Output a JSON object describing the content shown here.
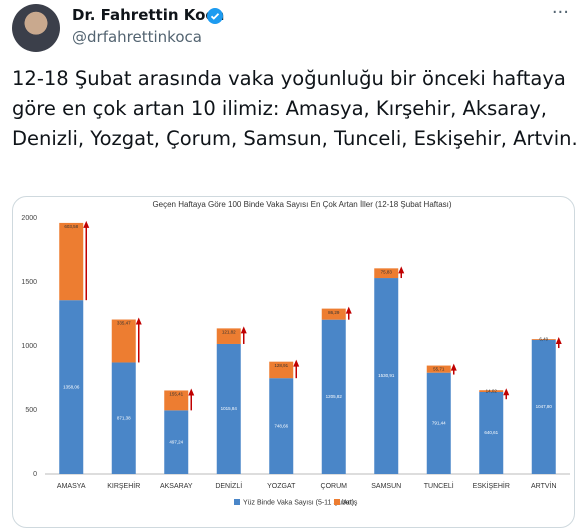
{
  "tweet": {
    "author": "Dr. Fahrettin Koca",
    "handle": "@drfahrettinkoca",
    "text": "12-18 Şubat arasında vaka yoğunluğu bir önceki haftaya göre en çok artan 10 ilimiz: Amasya, Kırşehir, Aksaray, Denizli, Yozgat, Çorum, Samsun, Tunceli, Eskişehir, Artvin."
  },
  "chart_data": {
    "type": "stacked-bar",
    "title": "Geçen Haftaya Göre 100 Binde Vaka Sayısı En Çok Artan İller (12-18 Şubat Haftası)",
    "categories": [
      "AMASYA",
      "KIRŞEHİR",
      "AKSARAY",
      "DENİZLİ",
      "YOZGAT",
      "ÇORUM",
      "SAMSUN",
      "TUNCELİ",
      "ESKİŞEHİR",
      "ARTVİN"
    ],
    "series": [
      {
        "name": "Yüz Binde Vaka Sayısı (5-11 Şubat)",
        "color": "#4a86c8",
        "values": [
          1358.06,
          871.38,
          497.24,
          1015.84,
          748.66,
          1205.82,
          1530.91,
          791.44,
          640.61,
          1047.8
        ],
        "value_labels": [
          "1358,06",
          "871,38",
          "497,24",
          "1015,84",
          "748,66",
          "1205,82",
          "1530,91",
          "791,44",
          "640,61",
          "1047,80"
        ]
      },
      {
        "name": "Artış",
        "color": "#ed7d31",
        "values": [
          603.58,
          335.47,
          155.41,
          121.82,
          128.91,
          86.29,
          75.83,
          55.71,
          14.02,
          6.49
        ],
        "value_labels": [
          "603,58",
          "335,47",
          "155,41",
          "121,82",
          "128,91",
          "86,29",
          "75,83",
          "55,71",
          "14,02",
          "6,49"
        ]
      }
    ],
    "ylim": [
      0,
      2000
    ],
    "yticks": [
      0,
      500,
      1000,
      1500,
      2000
    ],
    "grid": false
  }
}
